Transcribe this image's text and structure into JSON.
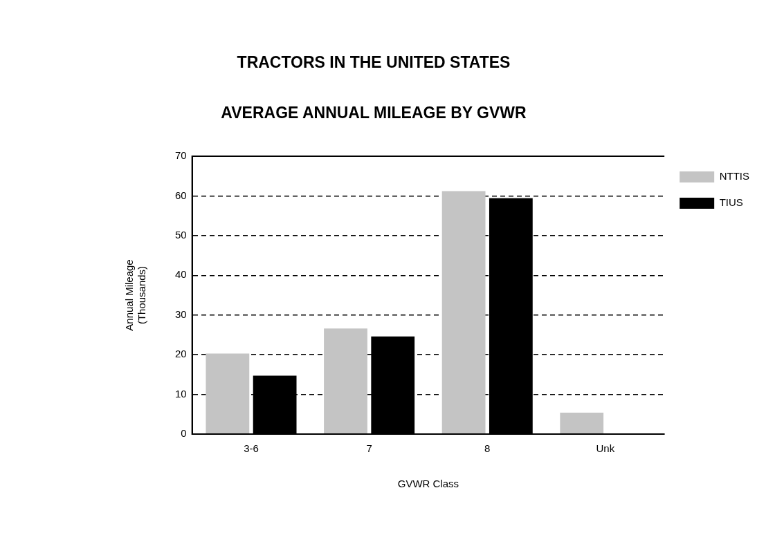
{
  "chart_data": {
    "type": "bar",
    "title": "TRACTORS IN THE UNITED STATES",
    "subtitle": "AVERAGE ANNUAL MILEAGE BY GVWR",
    "xlabel": "GVWR Class",
    "ylabel": "Annual Mileage\n(Thousands)",
    "categories": [
      "3-6",
      "7",
      "8",
      "Unk"
    ],
    "series": [
      {
        "name": "NTTIS",
        "color": "#c4c4c4",
        "values": [
          20.3,
          26.6,
          61.2,
          5.4
        ]
      },
      {
        "name": "TIUS",
        "color": "#000000",
        "values": [
          14.7,
          24.6,
          59.4,
          null
        ]
      }
    ],
    "ylim": [
      0,
      70
    ],
    "yticks": [
      0,
      10,
      20,
      30,
      40,
      50,
      60,
      70
    ],
    "grid": "y",
    "legend": "right"
  }
}
